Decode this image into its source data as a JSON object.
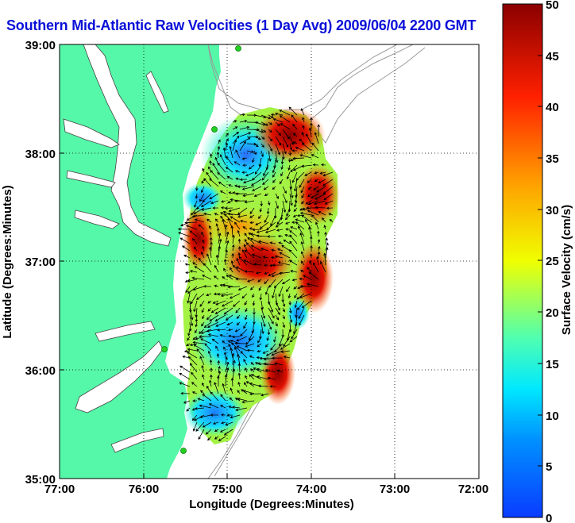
{
  "title": "Southern Mid-Atlantic Raw Velocities (1 Day Avg) 2009/06/04 2200 GMT",
  "x_axis": {
    "label": "Longitude (Degrees:Minutes)",
    "ticks": [
      "77:00",
      "76:00",
      "75:00",
      "74:00",
      "73:00",
      "72:00"
    ],
    "range": [
      -77,
      -72
    ]
  },
  "y_axis": {
    "label": "Latitude (Degrees:Minutes)",
    "ticks": [
      "39:00",
      "38:00",
      "37:00",
      "36:00",
      "35:00"
    ],
    "range": [
      35,
      39
    ]
  },
  "colorbar": {
    "label": "Surface Velocity (cm/s)",
    "ticks": [
      "0",
      "5",
      "10",
      "15",
      "20",
      "25",
      "30",
      "35",
      "40",
      "45",
      "50"
    ],
    "range": [
      0,
      50
    ],
    "colors": [
      "#0a3cff",
      "#00a0ff",
      "#00f0ff",
      "#70ff90",
      "#f0ff00",
      "#ffa000",
      "#ff2000",
      "#8a0000"
    ]
  },
  "colors": {
    "land": "#55f7a8",
    "water": "#ffffff",
    "grid": "#000000",
    "bathymetry": "#9a9a9a",
    "title": "#0b10d8",
    "station": "#22d022"
  }
}
